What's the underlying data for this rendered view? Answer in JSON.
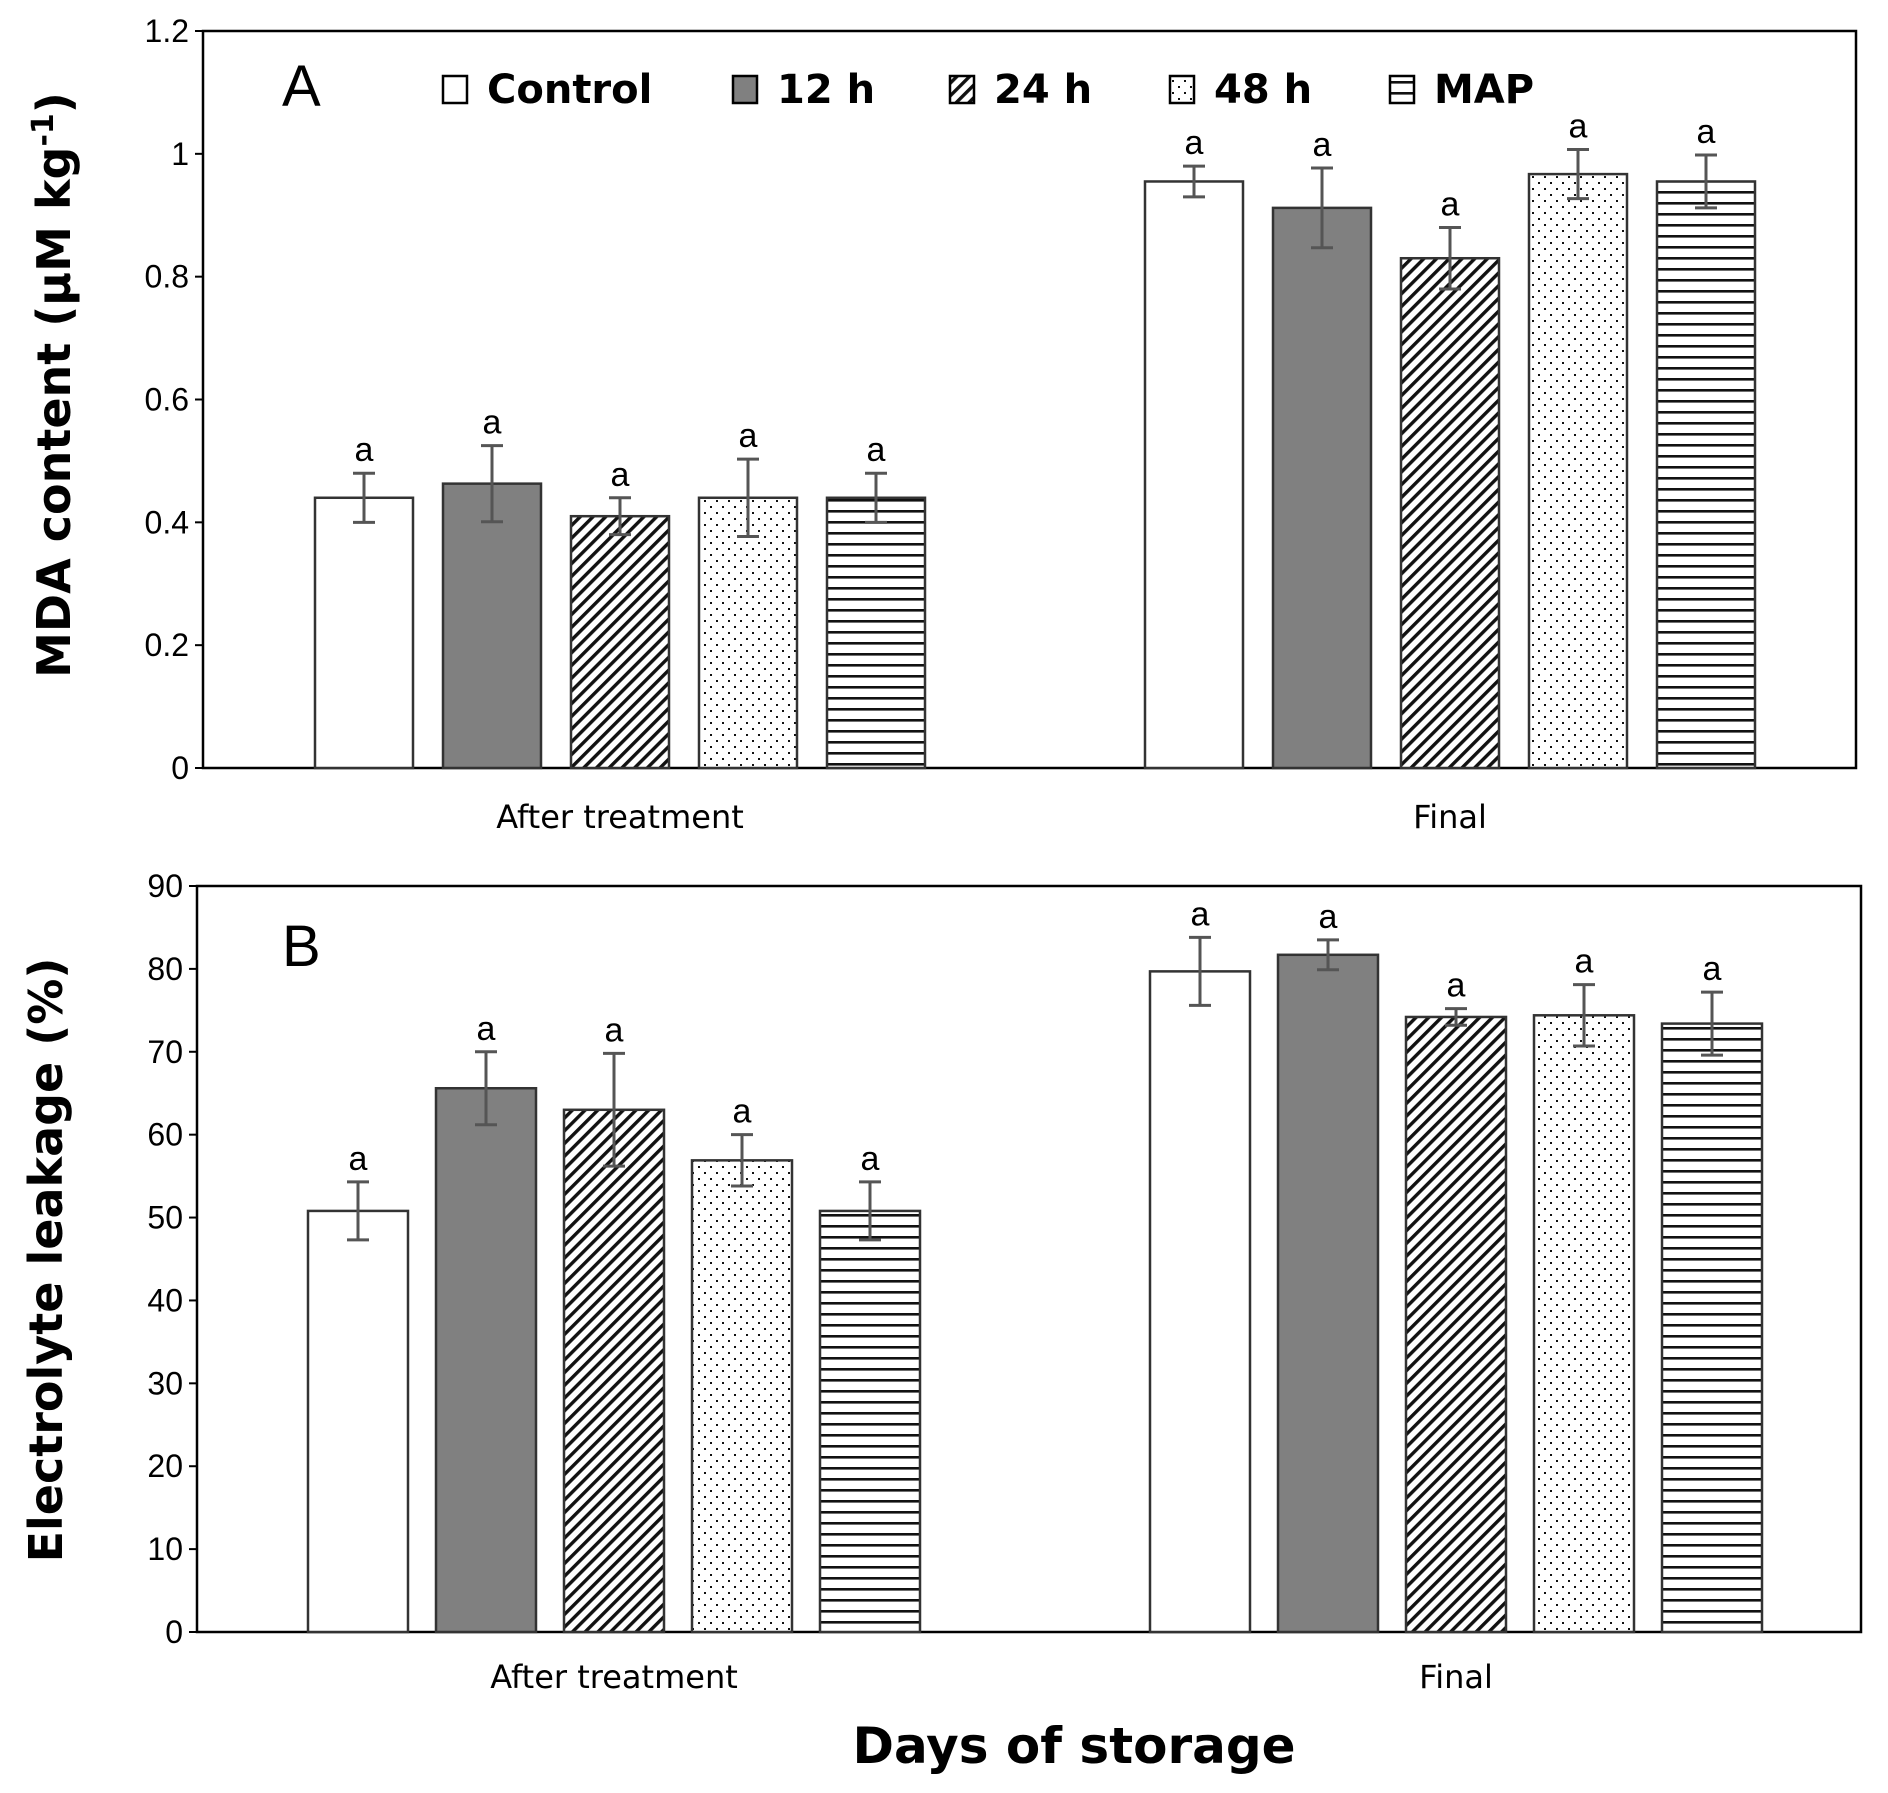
{
  "chart_data": [
    {
      "type": "bar",
      "panel": "A",
      "title": "",
      "xlabel": "",
      "ylabel": "MDA content (μM kg",
      "ylabel_superscript": "-1",
      "ylabel_close": ")",
      "ylim": [
        0,
        1.2
      ],
      "yticks": [
        0,
        0.2,
        0.4,
        0.6,
        0.8,
        1,
        1.2
      ],
      "grid": false,
      "legend_position": "top",
      "categories": [
        "After treatment",
        "Final"
      ],
      "series": [
        {
          "name": "Control",
          "values": [
            0.44,
            0.955
          ],
          "errors": [
            0.04,
            0.025
          ],
          "labels": [
            "a",
            "a"
          ]
        },
        {
          "name": "12 h",
          "values": [
            0.463,
            0.912
          ],
          "errors": [
            0.062,
            0.065
          ],
          "labels": [
            "a",
            "a"
          ]
        },
        {
          "name": "24 h",
          "values": [
            0.41,
            0.83
          ],
          "errors": [
            0.03,
            0.05
          ],
          "labels": [
            "a",
            "a"
          ]
        },
        {
          "name": "48 h",
          "values": [
            0.44,
            0.967
          ],
          "errors": [
            0.063,
            0.04
          ],
          "labels": [
            "a",
            "a"
          ]
        },
        {
          "name": "MAP",
          "values": [
            0.44,
            0.955
          ],
          "errors": [
            0.04,
            0.043
          ],
          "labels": [
            "a",
            "a"
          ]
        }
      ]
    },
    {
      "type": "bar",
      "panel": "B",
      "title": "",
      "xlabel": "Days of storage",
      "ylabel": "Electrolyte leakage (%)",
      "ylim": [
        0,
        90
      ],
      "yticks": [
        0,
        10,
        20,
        30,
        40,
        50,
        60,
        70,
        80,
        90
      ],
      "grid": false,
      "categories": [
        "After treatment",
        "Final"
      ],
      "series": [
        {
          "name": "Control",
          "values": [
            50.8,
            79.7
          ],
          "errors": [
            3.5,
            4.1
          ],
          "labels": [
            "a",
            "a"
          ]
        },
        {
          "name": "12 h",
          "values": [
            65.6,
            81.7
          ],
          "errors": [
            4.4,
            1.8
          ],
          "labels": [
            "a",
            "a"
          ]
        },
        {
          "name": "24 h",
          "values": [
            63.0,
            74.2
          ],
          "errors": [
            6.8,
            1.0
          ],
          "labels": [
            "a",
            "a"
          ]
        },
        {
          "name": "48 h",
          "values": [
            56.9,
            74.4
          ],
          "errors": [
            3.1,
            3.7
          ],
          "labels": [
            "a",
            "a"
          ]
        },
        {
          "name": "MAP",
          "values": [
            50.8,
            73.4
          ],
          "errors": [
            3.5,
            3.8
          ],
          "labels": [
            "a",
            "a"
          ]
        }
      ]
    }
  ],
  "series_styles": [
    "open",
    "solid",
    "diagonal",
    "dots",
    "horizontal"
  ],
  "colors": {
    "fill_dark": "#808080",
    "outline": "#333333",
    "error_bar": "#555555",
    "axis": "#000000"
  }
}
